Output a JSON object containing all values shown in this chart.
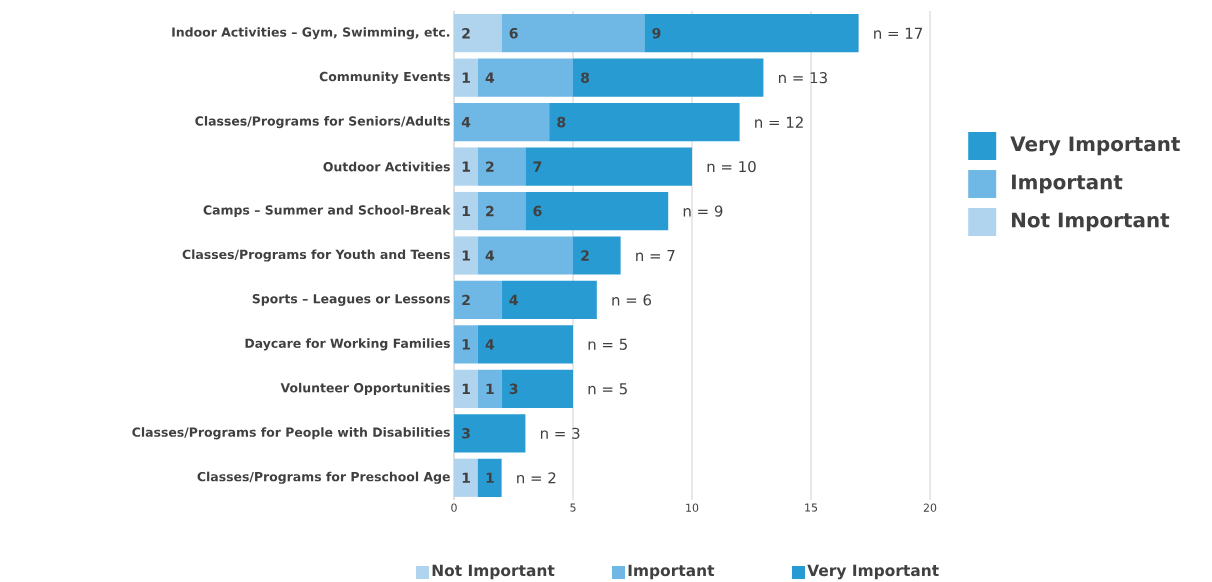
{
  "chart_data": {
    "type": "bar",
    "orientation": "horizontal",
    "stacked": true,
    "categories": [
      "Indoor Activities – Gym, Swimming, etc.",
      "Community Events",
      "Classes/Programs for Seniors/Adults",
      "Outdoor Activities",
      "Camps – Summer and School-Break",
      "Classes/Programs for Youth and Teens",
      "Sports – Leagues or Lessons",
      "Daycare for Working Families",
      "Volunteer Opportunities",
      "Classes/Programs for People with Disabilities",
      "Classes/Programs for Preschool Age"
    ],
    "series": [
      {
        "name": "Not Important",
        "color": "#b0d3ee",
        "values": [
          2,
          1,
          null,
          1,
          1,
          1,
          null,
          null,
          1,
          null,
          1
        ]
      },
      {
        "name": "Important",
        "color": "#6fb7e4",
        "values": [
          6,
          4,
          4,
          2,
          2,
          4,
          2,
          1,
          1,
          null,
          null
        ]
      },
      {
        "name": "Very Important",
        "color": "#289bd2",
        "values": [
          9,
          8,
          8,
          7,
          6,
          2,
          4,
          4,
          3,
          3,
          1
        ]
      }
    ],
    "totals": [
      "n = 17",
      "n = 13",
      "n = 12",
      "n = 10",
      "n = 9",
      "n = 7",
      "n = 6",
      "n = 5",
      "n = 5",
      "n = 3",
      "n = 2"
    ],
    "data_labels": true,
    "xlim": [
      0,
      20
    ],
    "xticks": [
      0,
      5,
      10,
      15,
      20
    ],
    "grid": "x",
    "legend": "bottom",
    "annotations": [
      "Very Important",
      "Important",
      "Not Important"
    ]
  }
}
